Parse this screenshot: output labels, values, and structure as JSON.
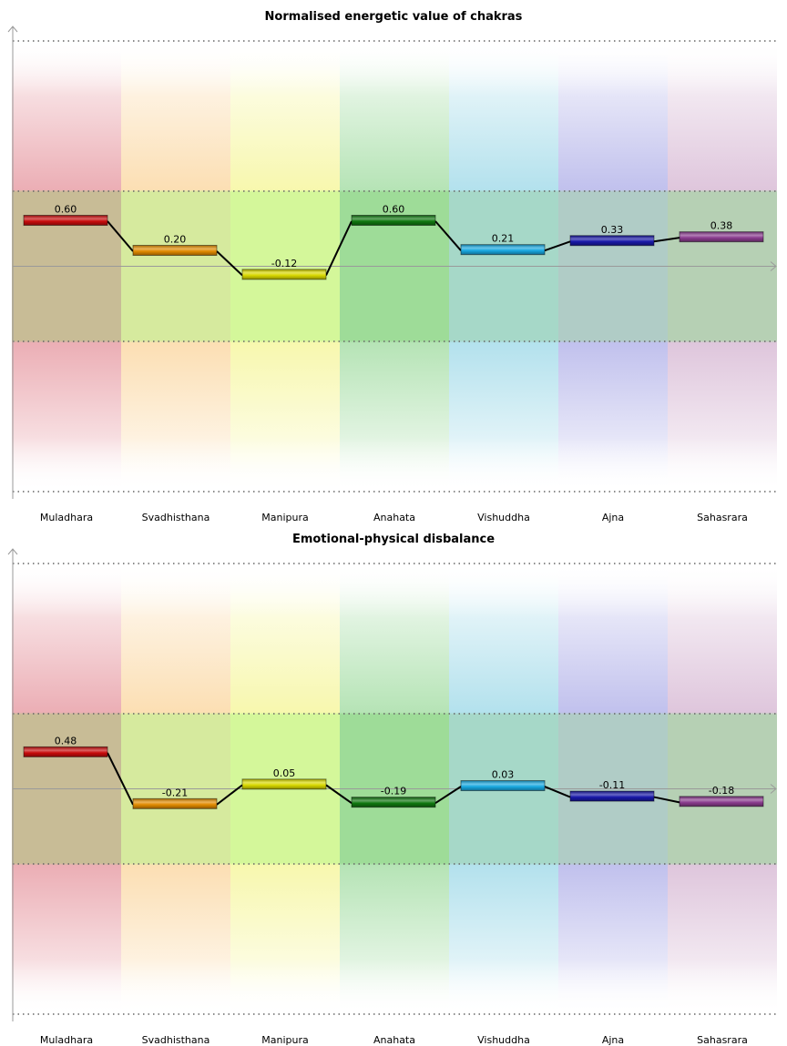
{
  "chart_data": [
    {
      "type": "line",
      "title": "Normalised energetic value of chakras",
      "categories": [
        "Muladhara",
        "Svadhisthana",
        "Manipura",
        "Anahata",
        "Vishuddha",
        "Ajna",
        "Sahasrara"
      ],
      "values": [
        0.6,
        0.2,
        -0.12,
        0.6,
        0.21,
        0.33,
        0.38
      ],
      "value_labels": [
        "0.60",
        "0.20",
        "-0.12",
        "0.60",
        "0.21",
        "0.33",
        "0.38"
      ],
      "ylim": [
        -3,
        3
      ],
      "gridlines": [
        3,
        1,
        -1,
        -3
      ],
      "grid": true,
      "legend": "none"
    },
    {
      "type": "line",
      "title": "Emotional-physical disbalance",
      "categories": [
        "Muladhara",
        "Svadhisthana",
        "Manipura",
        "Anahata",
        "Vishuddha",
        "Ajna",
        "Sahasrara"
      ],
      "values": [
        0.48,
        -0.21,
        0.05,
        -0.19,
        0.03,
        -0.11,
        -0.18
      ],
      "value_labels": [
        "0.48",
        "-0.21",
        "0.05",
        "-0.19",
        "0.03",
        "-0.11",
        "-0.18"
      ],
      "ylim": [
        -3,
        3
      ],
      "gridlines": [
        3,
        1,
        -1,
        -3
      ],
      "grid": true,
      "legend": "none"
    }
  ],
  "colors": {
    "band_colors": [
      "#e8a0a8",
      "#fbd9a6",
      "#f6f6a0",
      "#a9dfa9",
      "#a6dcea",
      "#b6b6ea",
      "#d9bcd6"
    ],
    "middle_band_colors": [
      "#c8bc96",
      "#d6ea9e",
      "#d4f79a",
      "#9edc98",
      "#a6d8c8",
      "#b0ccc6",
      "#b6d0b4"
    ],
    "bar_colors": [
      "#c80c0c",
      "#e08a00",
      "#d8d800",
      "#107810",
      "#18a8e0",
      "#1818a8",
      "#8a3c8e"
    ]
  }
}
